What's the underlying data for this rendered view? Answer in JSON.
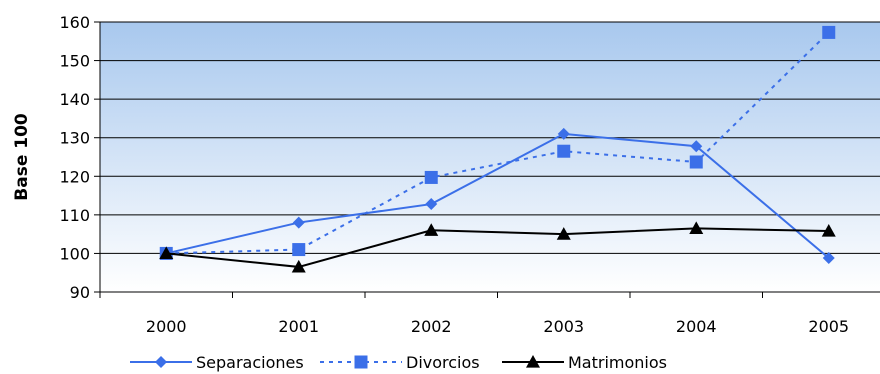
{
  "chart_data": {
    "type": "line",
    "ylabel": "Base 100",
    "xlabel": "",
    "categories": [
      "2000",
      "2001",
      "2002",
      "2003",
      "2004",
      "2005"
    ],
    "ylim": [
      90,
      160
    ],
    "yticks": [
      90,
      100,
      110,
      120,
      130,
      140,
      150,
      160
    ],
    "grid": true,
    "legend_position": "bottom",
    "plot_background": {
      "top": "#a8c8ee",
      "bottom": "#ffffff"
    },
    "series": [
      {
        "name": "Separaciones",
        "values": [
          100,
          108,
          112.8,
          131,
          127.8,
          98.8
        ],
        "color": "#3b6fe8",
        "line": "solid",
        "marker": "diamond"
      },
      {
        "name": "Divorcios",
        "values": [
          100,
          101,
          119.7,
          126.5,
          123.7,
          157.3
        ],
        "color": "#3b6fe8",
        "line": "dashed",
        "marker": "square"
      },
      {
        "name": "Matrimonios",
        "values": [
          100,
          96.5,
          106,
          105,
          106.5,
          105.8
        ],
        "color": "#000000",
        "line": "solid",
        "marker": "triangle"
      }
    ]
  }
}
